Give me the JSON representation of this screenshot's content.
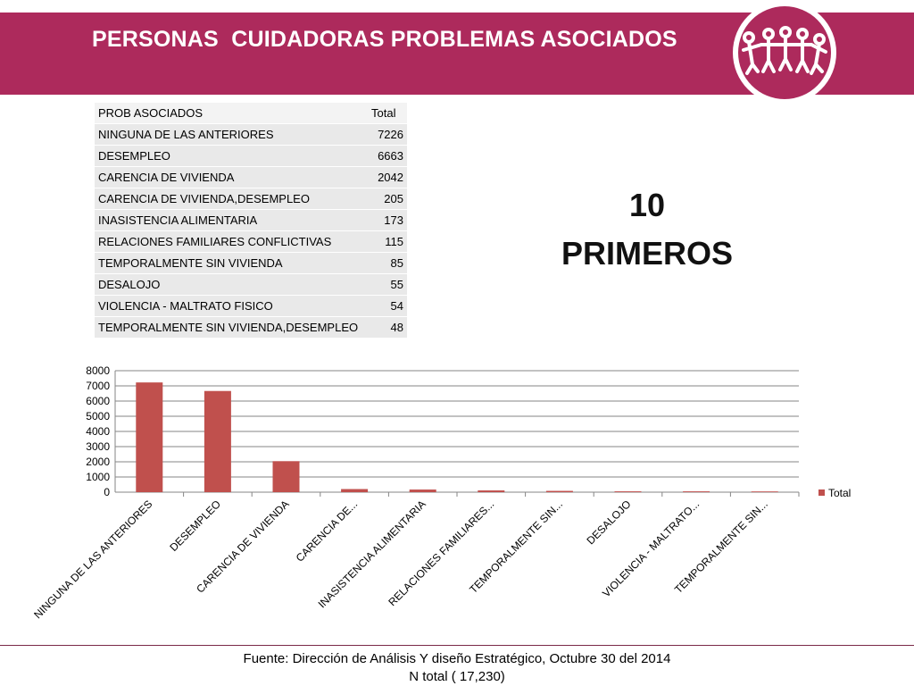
{
  "header": {
    "title": "PERSONAS  CUIDADORAS PROBLEMAS ASOCIADOS"
  },
  "colors": {
    "banner": "#ad2a5c",
    "bar": "#c0504d"
  },
  "logo": {
    "icon": "people-holding-hands-logo"
  },
  "table": {
    "headers": [
      "PROB ASOCIADOS",
      "Total"
    ],
    "rows": [
      [
        "NINGUNA DE LAS ANTERIORES",
        "7226"
      ],
      [
        "DESEMPLEO",
        "6663"
      ],
      [
        "CARENCIA DE VIVIENDA",
        "2042"
      ],
      [
        "CARENCIA DE VIVIENDA,DESEMPLEO",
        "205"
      ],
      [
        "INASISTENCIA ALIMENTARIA",
        "173"
      ],
      [
        "RELACIONES FAMILIARES CONFLICTIVAS",
        "115"
      ],
      [
        "TEMPORALMENTE SIN VIVIENDA",
        "85"
      ],
      [
        "DESALOJO",
        "55"
      ],
      [
        "VIOLENCIA - MALTRATO FISICO",
        "54"
      ],
      [
        "TEMPORALMENTE SIN VIVIENDA,DESEMPLEO",
        "48"
      ]
    ]
  },
  "callout": {
    "line1": "10",
    "line2": "PRIMEROS"
  },
  "chart_data": {
    "type": "bar",
    "categories": [
      "NINGUNA DE LAS ANTERIORES",
      "DESEMPLEO",
      "CARENCIA DE VIVIENDA",
      "CARENCIA DE...",
      "INASISTENCIA ALIMENTARIA",
      "RELACIONES FAMILIARES...",
      "TEMPORALMENTE SIN...",
      "DESALOJO",
      "VIOLENCIA - MALTRATO...",
      "TEMPORALMENTE SIN..."
    ],
    "series": [
      {
        "name": "Total",
        "values": [
          7226,
          6663,
          2042,
          205,
          173,
          115,
          85,
          55,
          54,
          48
        ]
      }
    ],
    "yticks": [
      "0",
      "1000",
      "2000",
      "3000",
      "4000",
      "5000",
      "6000",
      "7000",
      "8000"
    ],
    "ylim": [
      0,
      8000
    ],
    "grid": true,
    "legend": "right"
  },
  "footer": {
    "source": "Fuente: Dirección de Análisis Y diseño Estratégico, Octubre 30 del 2014",
    "total": "N total ( 17,230)"
  }
}
